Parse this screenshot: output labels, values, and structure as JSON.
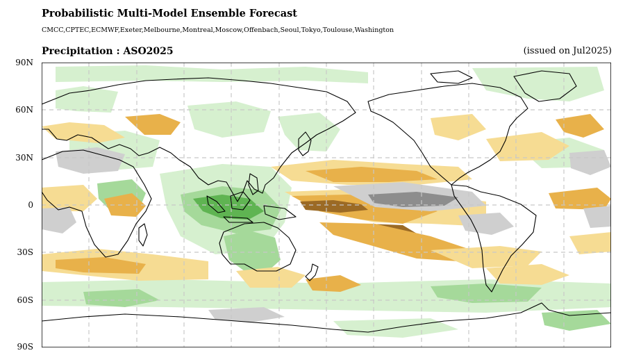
{
  "header": {
    "title": "Probabilistic Multi-Model Ensemble Forecast",
    "centres": "CMCC,CPTEC,ECMWF,Exeter,Melbourne,Montreal,Moscow,Offenbach,Seoul,Tokyo,Toulouse,Washington",
    "variable_season": "Precipitation : ASO2025",
    "issued": "(issued on Jul2025)"
  },
  "map": {
    "projection": "equirectangular, centred on 180",
    "lat_labels": [
      "90N",
      "60N",
      "30N",
      "0",
      "30S",
      "60S",
      "90S"
    ],
    "grid": "dashed, 30 degree spacing",
    "colors": {
      "wet_light": "#d6f0cf",
      "wet_mid": "#a5d99a",
      "wet_strong": "#5fb452",
      "dry_light": "#f6dc93",
      "dry_mid": "#e8b14a",
      "dry_strong": "#9b6a25",
      "normal_mid": "#cfcfcf",
      "normal_strong": "#8d8d8d",
      "coast": "#000000",
      "grid": "#c8c8c8"
    }
  }
}
